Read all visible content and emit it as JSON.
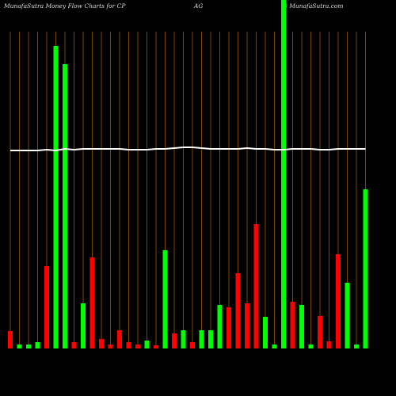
{
  "chart_data": {
    "type": "bar",
    "title_parts": [
      "MunafaSutra  Money Flow  Charts for CP",
      "AG",
      "() MunafaSutra.com"
    ],
    "values": [
      5.5,
      1.25,
      1.25,
      2,
      26,
      95.5,
      89.75,
      2,
      14.25,
      28.75,
      3,
      1.25,
      5.75,
      2,
      1.25,
      2.5,
      1,
      31,
      4.75,
      5.75,
      2,
      5.75,
      5.75,
      13.75,
      13,
      23.75,
      14.25,
      39.25,
      10,
      1.25,
      110,
      14.75,
      13.75,
      1.25,
      10.25,
      2.25,
      29.75,
      20.75,
      1.25,
      50.25
    ],
    "colors": [
      "#ff0000",
      "#00ff00",
      "#00ff00",
      "#00ff00",
      "#ff0000",
      "#00ff00",
      "#00ff00",
      "#ff0000",
      "#00ff00",
      "#ff0000",
      "#ff0000",
      "#ff0000",
      "#ff0000",
      "#ff0000",
      "#ff0000",
      "#00ff00",
      "#ff0000",
      "#00ff00",
      "#ff0000",
      "#00ff00",
      "#ff0000",
      "#00ff00",
      "#00ff00",
      "#00ff00",
      "#ff0000",
      "#ff0000",
      "#ff0000",
      "#ff0000",
      "#00ff00",
      "#00ff00",
      "#00ff00",
      "#ff0000",
      "#00ff00",
      "#00ff00",
      "#ff0000",
      "#ff0000",
      "#ff0000",
      "#00ff00",
      "#00ff00",
      "#00ff00"
    ],
    "line": {
      "color": "#ffffff",
      "values": [
        62.5,
        62.5,
        62.5,
        62.5,
        62.75,
        62.5,
        63,
        62.75,
        63,
        63,
        63,
        63,
        63,
        62.75,
        62.75,
        62.75,
        63,
        63,
        63.25,
        63.5,
        63.5,
        63.25,
        63,
        63,
        63,
        63,
        63.25,
        63,
        63,
        62.75,
        62.75,
        63,
        63,
        63,
        62.75,
        62.75,
        63,
        63,
        63,
        63
      ]
    },
    "grid_color": "#7a4800",
    "ylim": [
      -15,
      110
    ]
  }
}
